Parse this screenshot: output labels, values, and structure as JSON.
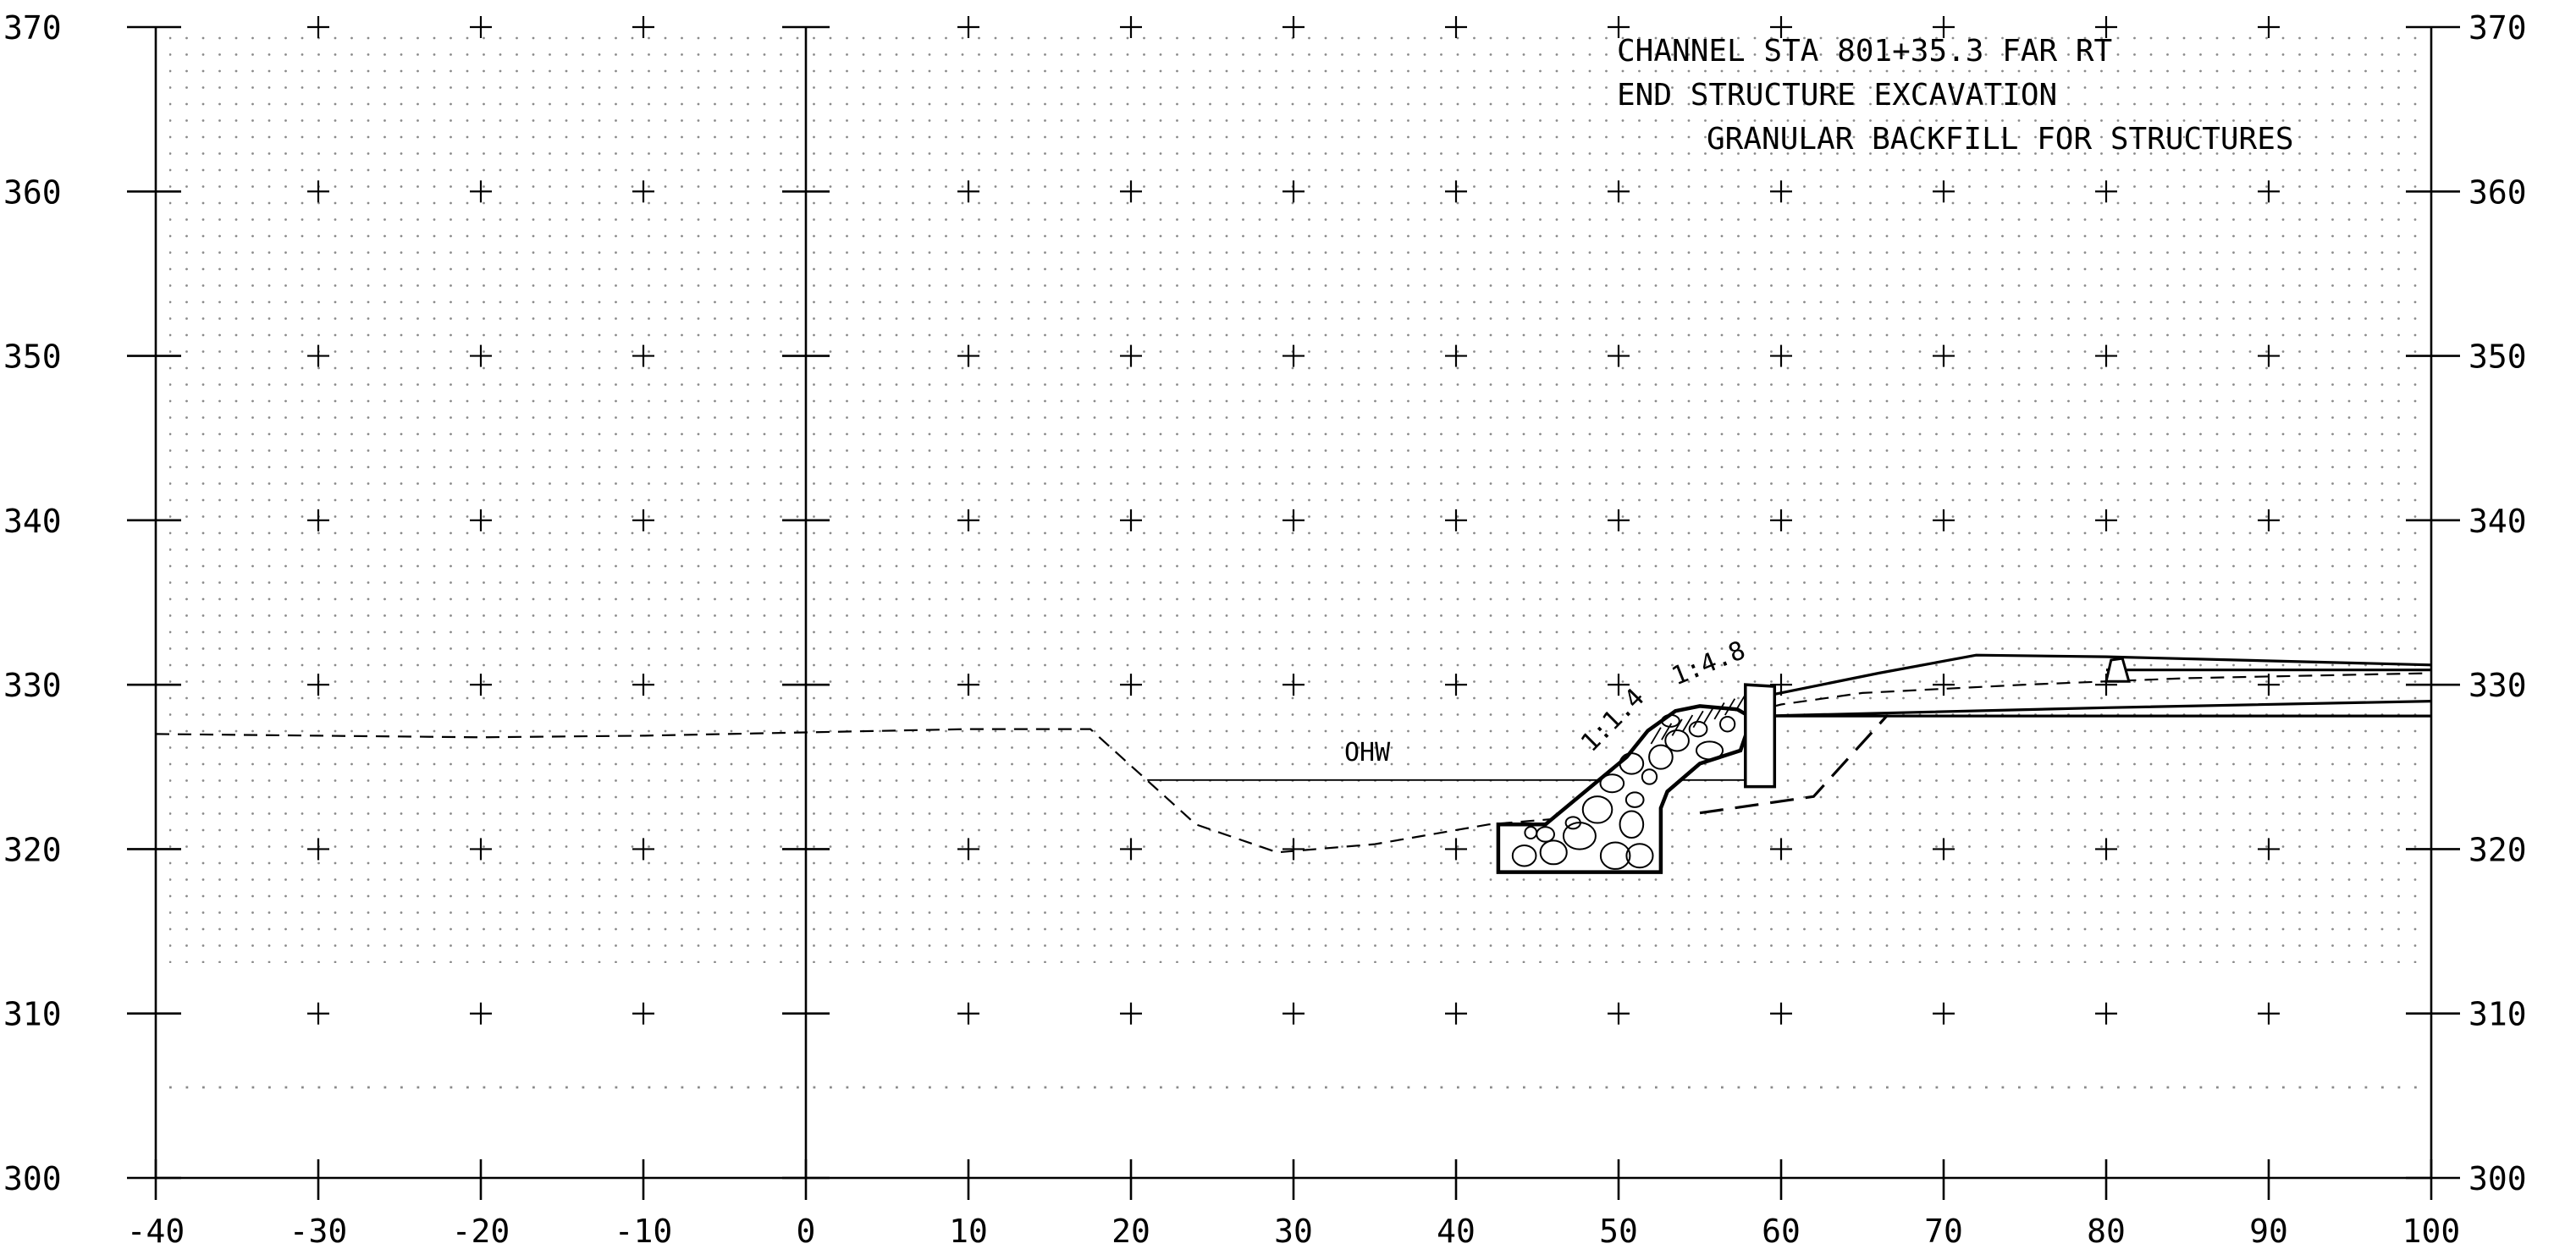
{
  "chart_data": {
    "type": "cross-section",
    "x_axis": {
      "min": -40,
      "max": 100,
      "step": 10,
      "tick_labels": [
        "-40",
        "-30",
        "-20",
        "-10",
        "0",
        "10",
        "20",
        "30",
        "40",
        "50",
        "60",
        "70",
        "80",
        "90",
        "100"
      ]
    },
    "y_axis": {
      "min": 300,
      "max": 370,
      "step": 10,
      "tick_labels": [
        "300",
        "310",
        "320",
        "330",
        "340",
        "350",
        "360",
        "370"
      ]
    },
    "notes": [
      "CHANNEL STA 801+35.3 FAR RT",
      "END STRUCTURE EXCAVATION",
      "GRANULAR BACKFILL FOR STRUCTURES"
    ],
    "labels": {
      "ohw": "OHW",
      "slope_1": "1:1.4",
      "slope_2": "1:4.8"
    },
    "existing_ground": [
      [
        -40,
        327.0
      ],
      [
        -30,
        326.9
      ],
      [
        -20,
        326.8
      ],
      [
        -10,
        326.9
      ],
      [
        0,
        327.1
      ],
      [
        10,
        327.3
      ],
      [
        17.5,
        327.3
      ],
      [
        24,
        321.5
      ],
      [
        29,
        319.8
      ],
      [
        35,
        320.3
      ],
      [
        42,
        321.5
      ],
      [
        48,
        322.0
      ],
      [
        52,
        324.0
      ],
      [
        55,
        327.2
      ],
      [
        58,
        328.3
      ],
      [
        60,
        328.8
      ],
      [
        65,
        329.5
      ],
      [
        75,
        330.0
      ],
      [
        85,
        330.4
      ],
      [
        100,
        330.7
      ]
    ],
    "ohw_line": [
      [
        21,
        324.2
      ],
      [
        58,
        324.2
      ]
    ],
    "excavation_line": [
      [
        55,
        322.2
      ],
      [
        62,
        323.2
      ],
      [
        66.5,
        328.1
      ]
    ],
    "finished_grade": [
      [
        59,
        329.3
      ],
      [
        66,
        330.7
      ],
      [
        72,
        331.8
      ],
      [
        80,
        331.7
      ],
      [
        100,
        331.2
      ]
    ],
    "roadway_lines": [
      [
        [
          59,
          328.1
        ],
        [
          100,
          328.1
        ]
      ],
      [
        [
          59,
          328.1
        ],
        [
          80,
          328.6
        ],
        [
          100,
          329.0
        ]
      ],
      [
        [
          80,
          330.9
        ],
        [
          100,
          330.9
        ]
      ]
    ],
    "backfill_outline": [
      [
        42.6,
        318.6
      ],
      [
        42.6,
        321.5
      ],
      [
        45.5,
        321.5
      ],
      [
        50.5,
        325.6
      ],
      [
        51.8,
        327.2
      ],
      [
        53.5,
        328.4
      ],
      [
        55.0,
        328.7
      ],
      [
        57.3,
        328.5
      ],
      [
        58.2,
        328.0
      ],
      [
        57.5,
        326.0
      ],
      [
        55.0,
        325.2
      ],
      [
        53.0,
        323.5
      ],
      [
        52.6,
        322.5
      ],
      [
        52.6,
        318.6
      ],
      [
        45.8,
        318.6
      ]
    ],
    "wall": [
      [
        57.8,
        323.8
      ],
      [
        59.6,
        323.8
      ],
      [
        59.6,
        329.9
      ],
      [
        57.8,
        330.0
      ]
    ],
    "curb": [
      [
        80.0,
        330.2
      ],
      [
        81.4,
        330.2
      ],
      [
        81.0,
        331.6
      ],
      [
        80.3,
        331.5
      ]
    ]
  }
}
